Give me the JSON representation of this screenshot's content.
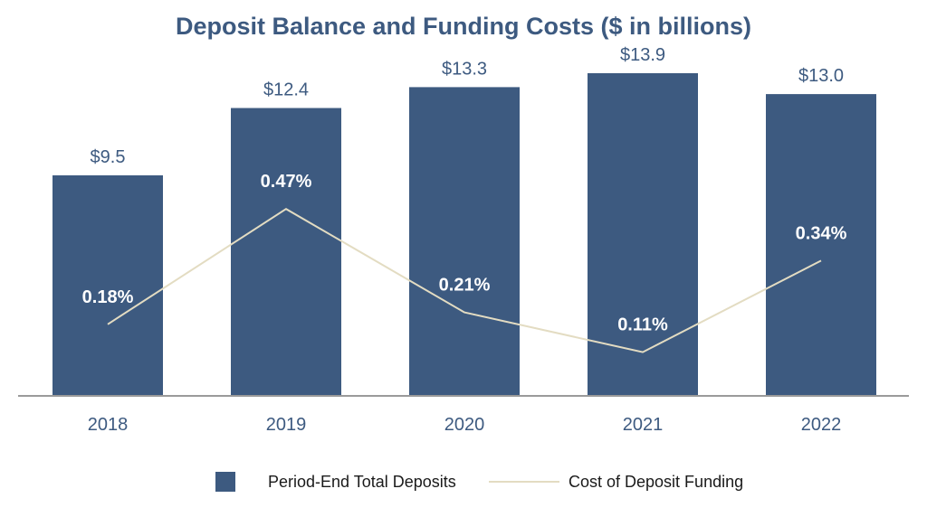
{
  "chart_data": {
    "type": "bar+line",
    "title": "Deposit Balance and Funding Costs ($ in billions)",
    "categories": [
      "2018",
      "2019",
      "2020",
      "2021",
      "2022"
    ],
    "series": [
      {
        "name": "Period-End Total Deposits",
        "kind": "bar",
        "values": [
          9.5,
          12.4,
          13.3,
          13.9,
          13.0
        ],
        "labels": [
          "$9.5",
          "$12.4",
          "$13.3",
          "$13.9",
          "$13.0"
        ],
        "color": "#3d5a80"
      },
      {
        "name": "Cost of Deposit Funding",
        "kind": "line",
        "values": [
          0.18,
          0.47,
          0.21,
          0.11,
          0.34
        ],
        "labels": [
          "0.18%",
          "0.47%",
          "0.21%",
          "0.11%",
          "0.34%"
        ],
        "color": "#e3dcc2"
      }
    ],
    "ylim_bar": [
      0,
      14.5
    ],
    "ylim_line": [
      0,
      0.7
    ],
    "legend": "bottom-center",
    "grid": false,
    "axis_color": "#9a9a9a",
    "label_color": "#3d5a80",
    "line_label_color": "#ffffff"
  }
}
